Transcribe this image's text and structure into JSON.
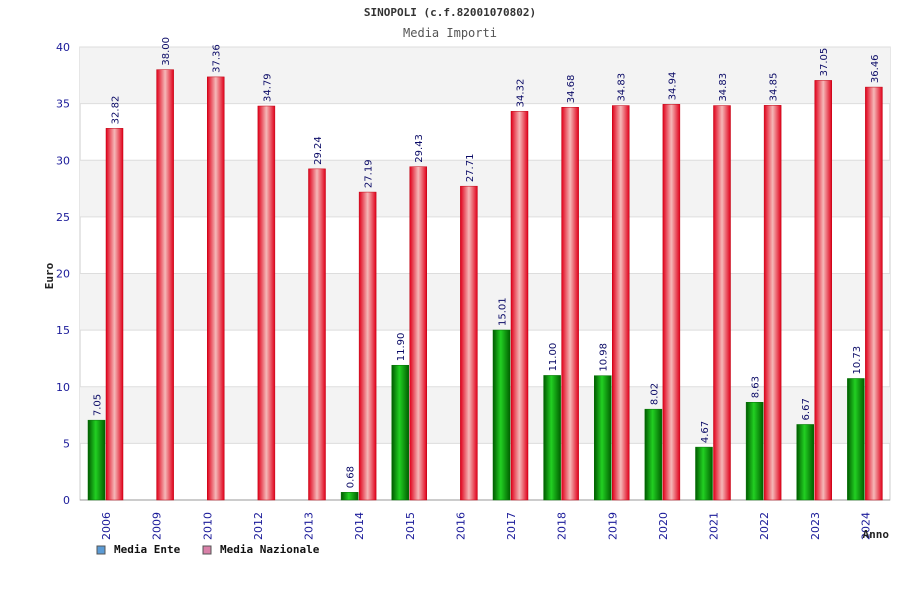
{
  "chart_data": {
    "type": "bar",
    "title": "SINOPOLI (c.f.82001070802)",
    "subtitle": "Media Importi",
    "xlabel": "Anno",
    "ylabel": "Euro",
    "ylim": [
      0,
      40
    ],
    "yticks": [
      "0",
      "5",
      "10",
      "15",
      "20",
      "25",
      "30",
      "35",
      "40"
    ],
    "grid": true,
    "legend_position": "bottom-left",
    "categories": [
      "2006",
      "2009",
      "2010",
      "2012",
      "2013",
      "2014",
      "2015",
      "2016",
      "2017",
      "2018",
      "2019",
      "2020",
      "2021",
      "2022",
      "2023",
      "2024"
    ],
    "series": [
      {
        "name": "Media Ente",
        "color": "#00a000",
        "values": [
          7.05,
          null,
          null,
          null,
          null,
          0.68,
          11.9,
          null,
          15.01,
          11.0,
          10.98,
          8.02,
          4.67,
          8.63,
          6.67,
          10.73
        ],
        "labels": [
          "7.05",
          "",
          "",
          "",
          "",
          "0.68",
          "11.90",
          "",
          "15.01",
          "11.00",
          "10.98",
          "8.02",
          "4.67",
          "8.63",
          "6.67",
          "10.73"
        ]
      },
      {
        "name": "Media Nazionale",
        "color": "#e00010",
        "values": [
          32.82,
          38.0,
          37.36,
          34.79,
          29.24,
          27.19,
          29.43,
          27.71,
          34.32,
          34.68,
          34.83,
          34.94,
          34.83,
          34.85,
          37.05,
          36.46
        ],
        "labels": [
          "32.82",
          "38.00",
          "37.36",
          "34.79",
          "29.24",
          "27.19",
          "29.43",
          "27.71",
          "34.32",
          "34.68",
          "34.83",
          "34.94",
          "34.83",
          "34.85",
          "37.05",
          "36.46"
        ]
      }
    ],
    "legend_colors": [
      "#5b9bd5",
      "#d980a8"
    ]
  }
}
